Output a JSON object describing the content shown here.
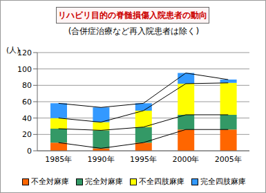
{
  "chart_data": {
    "type": "bar",
    "title": "リハビリ目的の脊髄損傷入院患者の動向",
    "subtitle": "(合併症治療など再入院患者は除く)",
    "ylabel": "(人)",
    "categories": [
      "1985年",
      "1990年",
      "1995年",
      "2000年",
      "2005年"
    ],
    "series": [
      {
        "name": "不全対麻痺",
        "color": "#ff6600",
        "values": [
          10,
          3,
          10,
          26,
          26
        ]
      },
      {
        "name": "完全対麻痺",
        "color": "#339966",
        "values": [
          17,
          22,
          19,
          18,
          18
        ]
      },
      {
        "name": "不全四肢麻痺",
        "color": "#ffff00",
        "values": [
          13,
          10,
          20,
          38,
          39
        ]
      },
      {
        "name": "完全四肢麻痺",
        "color": "#3399ff",
        "values": [
          18,
          18,
          9,
          13,
          4
        ]
      }
    ],
    "ylim": [
      0,
      120
    ],
    "yticks": [
      0,
      20,
      40,
      60,
      80,
      100,
      120
    ],
    "stacked": true,
    "grid": true,
    "legend": "bottom"
  }
}
